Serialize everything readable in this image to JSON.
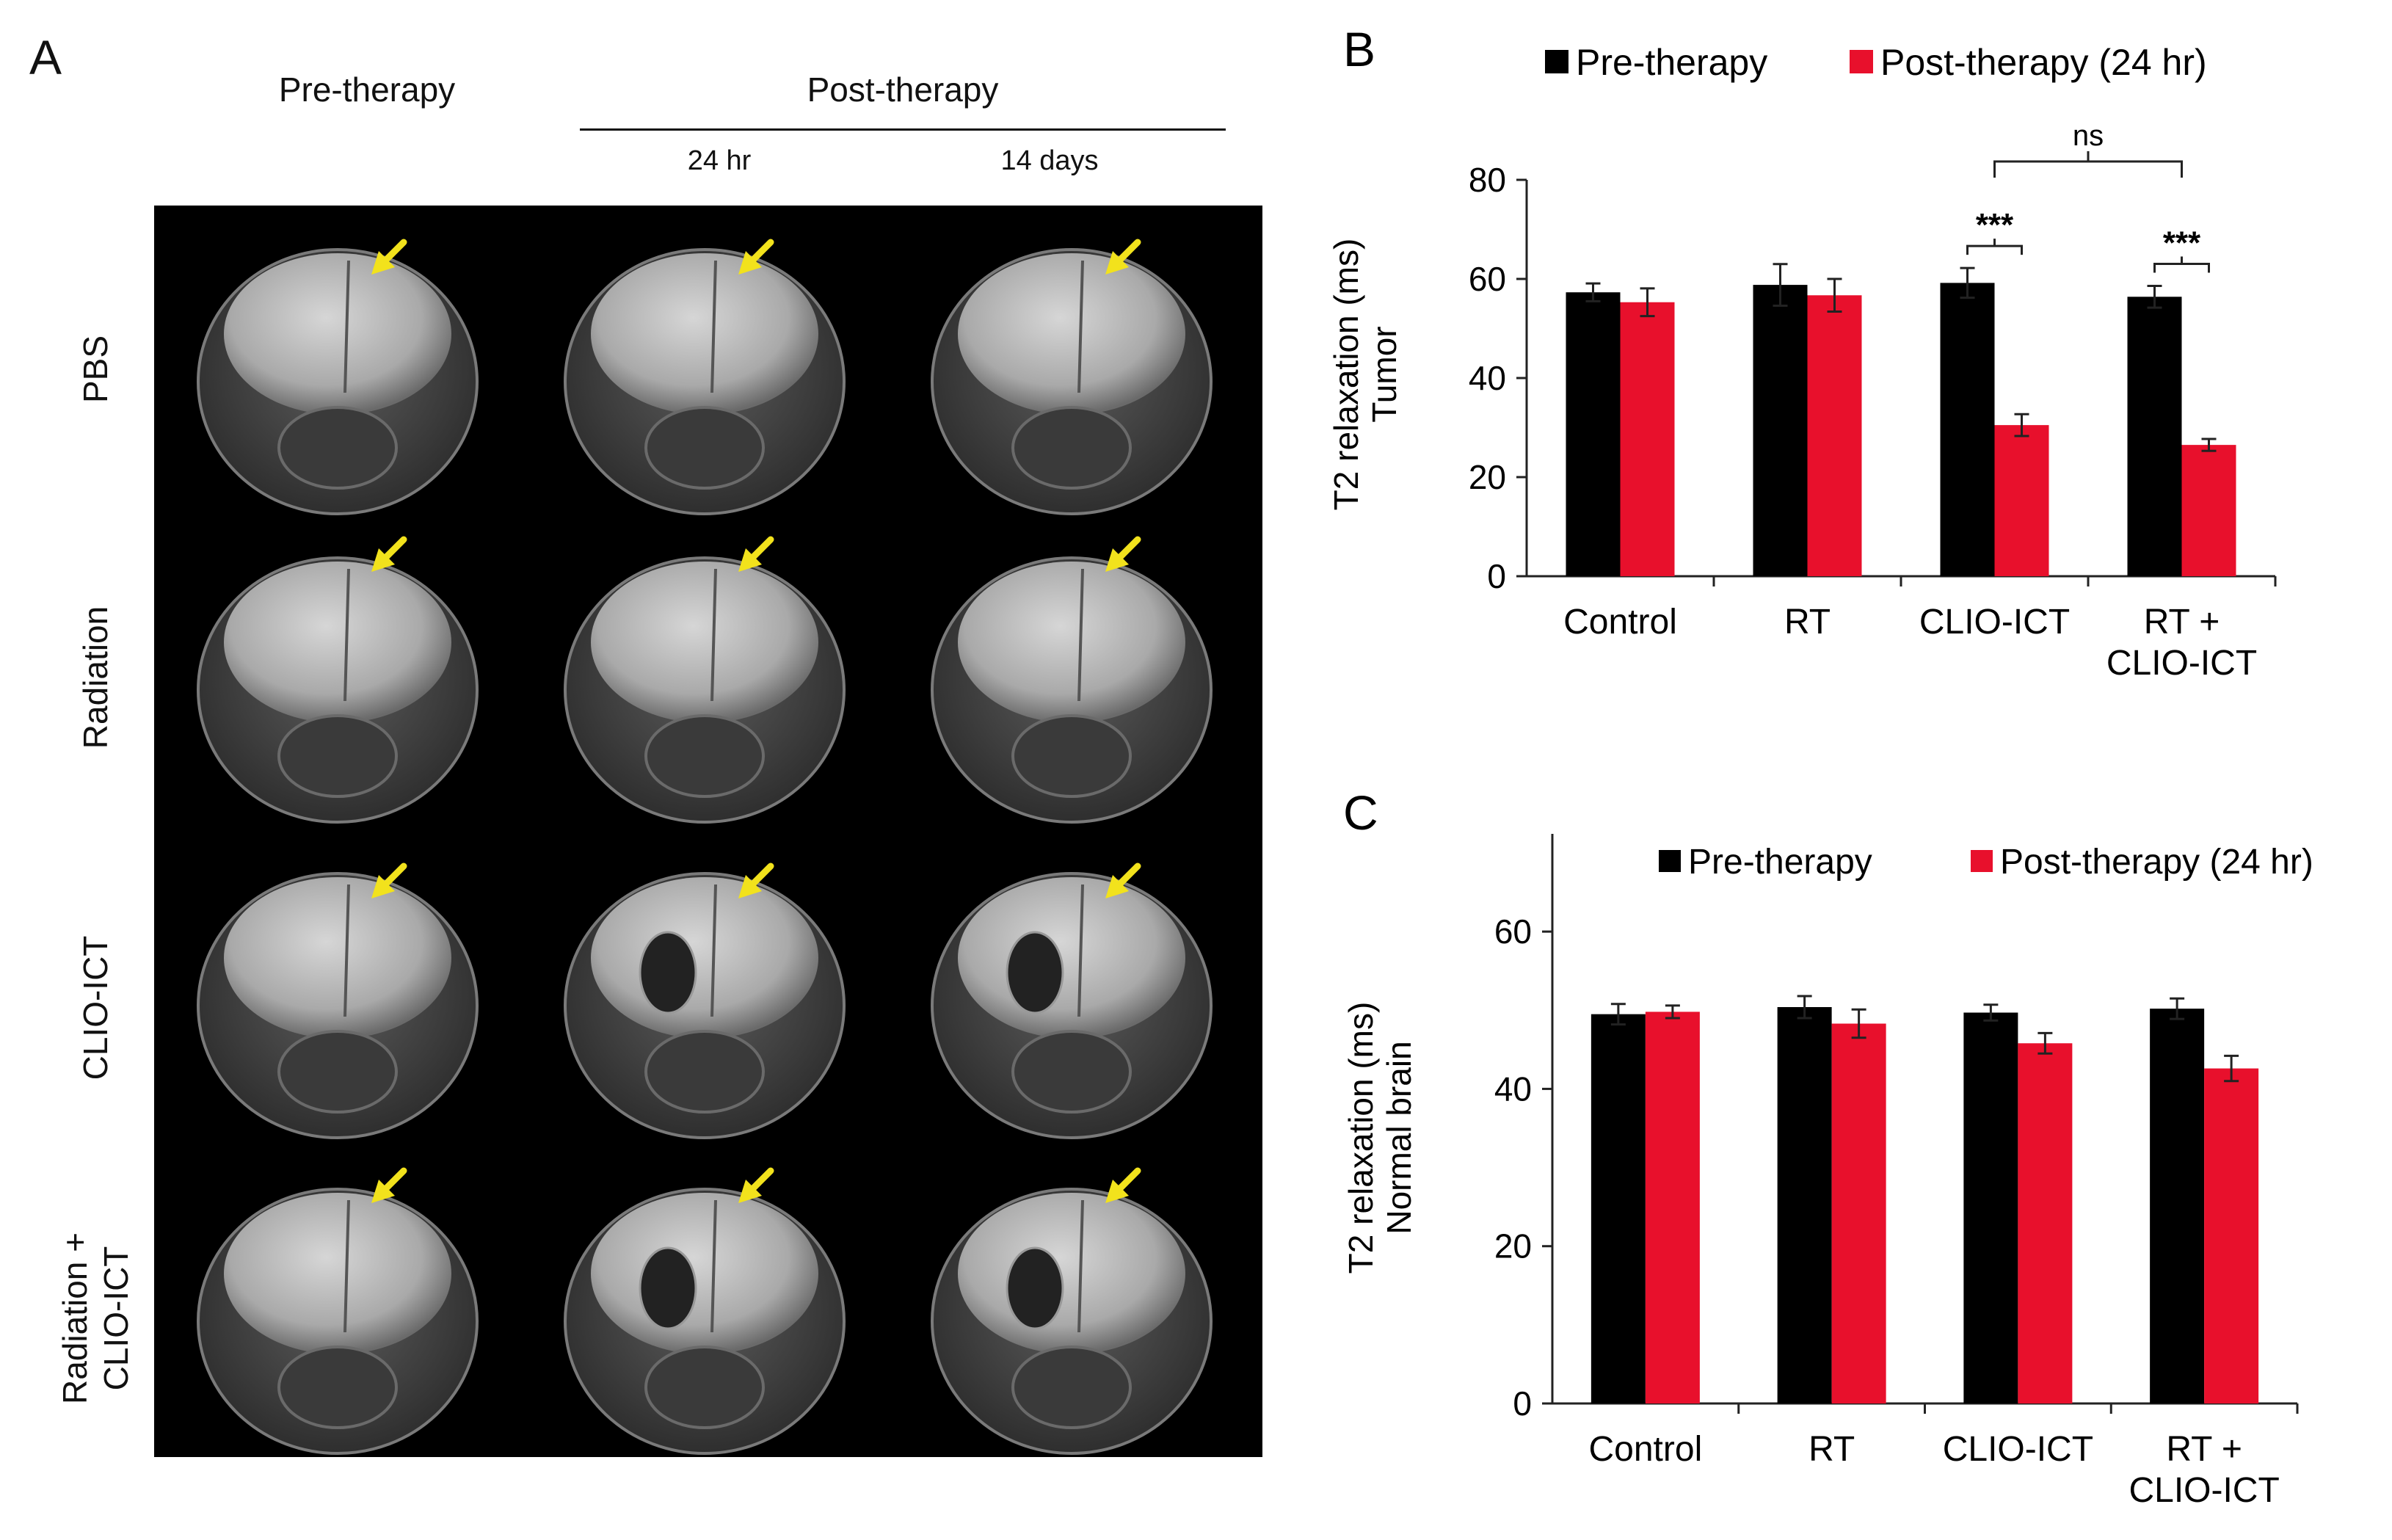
{
  "panel_a": {
    "letter": "A",
    "col_pre": "Pre-therapy",
    "col_post": "Post-therapy",
    "sub_24": "24 hr",
    "sub_14": "14 days",
    "rows": [
      {
        "label_line1": "PBS",
        "label_line2": ""
      },
      {
        "label_line1": "Radiation",
        "label_line2": ""
      },
      {
        "label_line1": "CLIO-ICT",
        "label_line2": ""
      },
      {
        "label_line1": "Radiation +",
        "label_line2": "CLIO-ICT"
      }
    ],
    "arrow_color": "#f2e21c"
  },
  "colors": {
    "pre": "#000000",
    "post": "#e8102c"
  },
  "chart_data": [
    {
      "type": "bar",
      "panel": "B",
      "title": "",
      "legend": [
        "Pre-therapy",
        "Post-therapy (24 hr)"
      ],
      "ylabel_line1": "T2 relaxation (ms)",
      "ylabel_line2": "Tumor",
      "ylim": [
        0,
        80
      ],
      "yticks": [
        0,
        20,
        40,
        60,
        80
      ],
      "categories": [
        "Control",
        "RT",
        "CLIO-ICT",
        "RT + CLIO-ICT"
      ],
      "category_lines": [
        [
          "Control"
        ],
        [
          "RT"
        ],
        [
          "CLIO-ICT"
        ],
        [
          "RT +",
          "CLIO-ICT"
        ]
      ],
      "series": [
        {
          "name": "Pre-therapy",
          "values": [
            57.3,
            58.8,
            59.2,
            56.4
          ],
          "errors": [
            1.8,
            4.2,
            3.0,
            2.2
          ]
        },
        {
          "name": "Post-therapy (24 hr)",
          "values": [
            55.3,
            56.7,
            30.5,
            26.5
          ],
          "errors": [
            2.8,
            3.3,
            2.2,
            1.2
          ]
        }
      ],
      "annotations": {
        "sig1": "***",
        "sig2": "***",
        "ns": "ns"
      }
    },
    {
      "type": "bar",
      "panel": "C",
      "title": "",
      "legend": [
        "Pre-therapy",
        "Post-therapy (24 hr)"
      ],
      "ylabel_line1": "T2 relaxation (ms)",
      "ylabel_line2": "Normal brain",
      "ylim": [
        0,
        70
      ],
      "yticks": [
        0,
        20,
        40,
        60
      ],
      "categories": [
        "Control",
        "RT",
        "CLIO-ICT",
        "RT + CLIO-ICT"
      ],
      "category_lines": [
        [
          "Control"
        ],
        [
          "RT"
        ],
        [
          "CLIO-ICT"
        ],
        [
          "RT +",
          "CLIO-ICT"
        ]
      ],
      "series": [
        {
          "name": "Pre-therapy",
          "values": [
            49.5,
            50.4,
            49.7,
            50.2
          ],
          "errors": [
            1.3,
            1.4,
            1.0,
            1.3
          ]
        },
        {
          "name": "Post-therapy (24 hr)",
          "values": [
            49.8,
            48.3,
            45.8,
            42.6
          ],
          "errors": [
            0.8,
            1.8,
            1.3,
            1.6
          ]
        }
      ]
    }
  ]
}
